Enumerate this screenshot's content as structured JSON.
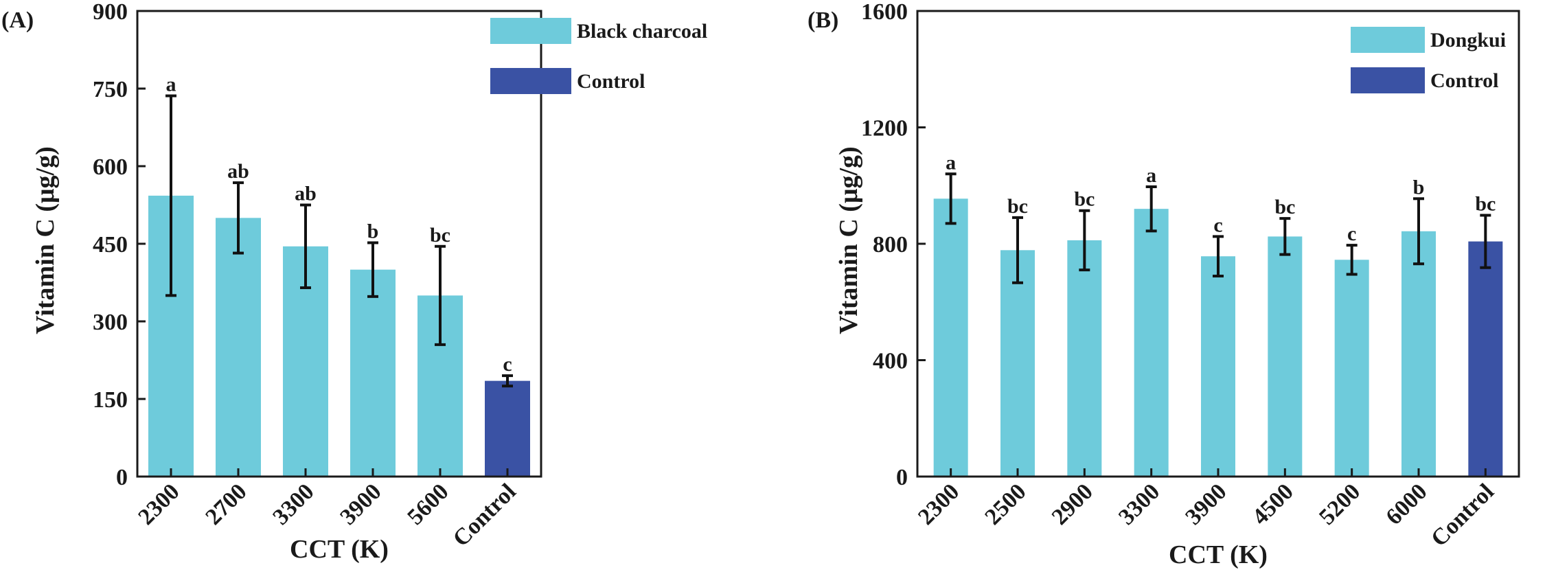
{
  "chart_data": [
    {
      "type": "bar",
      "panel_label": "(A)",
      "xlabel": "CCT (K)",
      "ylabel": "Vitamin C (μg/g)",
      "ylim": [
        0,
        900
      ],
      "yticks": [
        0,
        150,
        300,
        450,
        600,
        750,
        900
      ],
      "categories": [
        "2300",
        "2700",
        "3300",
        "3900",
        "5600",
        "Control"
      ],
      "values": [
        543,
        500,
        445,
        400,
        350,
        185
      ],
      "errors": [
        193,
        68,
        80,
        52,
        95,
        10
      ],
      "significance": [
        "a",
        "ab",
        "ab",
        "b",
        "bc",
        "c"
      ],
      "bar_groups": [
        "treatment",
        "treatment",
        "treatment",
        "treatment",
        "treatment",
        "control"
      ],
      "legend": [
        {
          "label": "Black charcoal",
          "color": "#6ecbdb"
        },
        {
          "label": "Control",
          "color": "#3a52a4"
        }
      ],
      "legend_position": "top-right",
      "colors": {
        "treatment": "#6ecbdb",
        "control": "#3a52a4"
      }
    },
    {
      "type": "bar",
      "panel_label": "(B)",
      "xlabel": "CCT (K)",
      "ylabel": "Vitamin C (μg/g)",
      "ylim": [
        0,
        1600
      ],
      "yticks": [
        0,
        400,
        800,
        1200,
        1600
      ],
      "categories": [
        "2300",
        "2500",
        "2900",
        "3300",
        "3900",
        "4500",
        "5200",
        "6000",
        "Control"
      ],
      "values": [
        955,
        778,
        812,
        920,
        757,
        825,
        745,
        843,
        808
      ],
      "errors": [
        85,
        112,
        102,
        76,
        68,
        62,
        50,
        112,
        90
      ],
      "significance": [
        "a",
        "bc",
        "bc",
        "a",
        "c",
        "bc",
        "c",
        "b",
        "bc"
      ],
      "bar_groups": [
        "treatment",
        "treatment",
        "treatment",
        "treatment",
        "treatment",
        "treatment",
        "treatment",
        "treatment",
        "control"
      ],
      "legend": [
        {
          "label": "Dongkui",
          "color": "#6ecbdb"
        },
        {
          "label": "Control",
          "color": "#3a52a4"
        }
      ],
      "legend_position": "top-right",
      "colors": {
        "treatment": "#6ecbdb",
        "control": "#3a52a4"
      }
    }
  ]
}
